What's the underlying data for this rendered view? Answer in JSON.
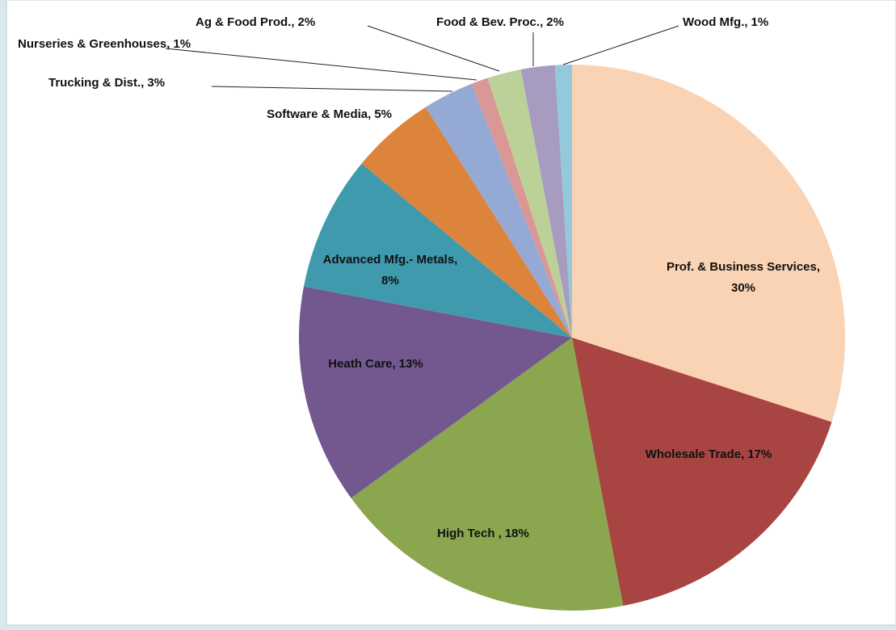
{
  "chart_data": {
    "type": "pie",
    "categories": [
      "Prof. & Business Services,",
      "Wholesale Trade,",
      "High Tech ,",
      "Heath Care,",
      "Advanced Mfg.- Metals,",
      "Software & Media,",
      "Trucking & Dist.,",
      "Nurseries & Greenhouses,",
      "Ag & Food Prod.,",
      "Food &  Bev. Proc.,",
      "Wood Mfg.,"
    ],
    "values": [
      30,
      17,
      18,
      13,
      8,
      5,
      3,
      1,
      2,
      2,
      1
    ],
    "value_labels": [
      "30%",
      "17%",
      "18%",
      "13%",
      "8%",
      "5%",
      "3%",
      "1%",
      "2%",
      "2%",
      "1%"
    ],
    "colors": [
      "#fad3b4",
      "#a84543",
      "#8aa64e",
      "#72588f",
      "#3f9aae",
      "#dc843c",
      "#94a9d4",
      "#d99795",
      "#bcd198",
      "#a89bc0",
      "#93c9da"
    ]
  }
}
